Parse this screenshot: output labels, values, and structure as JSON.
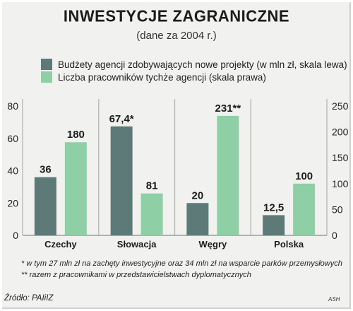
{
  "title": "INWESTYCJE ZAGRANICZNE",
  "subtitle": "(dane za 2004 r.)",
  "legend": [
    {
      "label": "Budżety agencji zdobywających nowe projekty (w mln zł, skala lewa)",
      "color": "#5e7a78"
    },
    {
      "label": "Liczba pracowników tychże agencji (skala prawa)",
      "color": "#8fcfa5"
    }
  ],
  "footnotes": [
    "* w tym 27 mln zł na zachęty inwestycyjne oraz 34 mln zł na wsparcie parków przemysłowych",
    "** razem z pracownikami w przedstawicielstwach dyplomatycznych"
  ],
  "source": "Źródło: PAIiIZ",
  "credit": "ASH",
  "chart_data": {
    "type": "bar",
    "categories": [
      "Czechy",
      "Słowacja",
      "Węgry",
      "Polska"
    ],
    "series": [
      {
        "name": "Budżety agencji zdobywających nowe projekty (w mln zł, skala lewa)",
        "axis": "left",
        "values": [
          36,
          67.4,
          20,
          12.5
        ],
        "labels": [
          "36",
          "67,4*",
          "20",
          "12,5"
        ],
        "color": "#5e7a78"
      },
      {
        "name": "Liczba pracowników tychże agencji (skala prawa)",
        "axis": "right",
        "values": [
          180,
          81,
          231,
          100
        ],
        "labels": [
          "180",
          "81",
          "231**",
          "100"
        ],
        "color": "#8fcfa5"
      }
    ],
    "left_axis": {
      "ylim": [
        0,
        80
      ],
      "ticks": [
        0,
        20,
        40,
        60,
        80
      ]
    },
    "right_axis": {
      "ylim": [
        0,
        250
      ],
      "ticks": [
        0,
        50,
        100,
        150,
        200,
        250
      ]
    },
    "grid": false,
    "category_dividers": true
  }
}
